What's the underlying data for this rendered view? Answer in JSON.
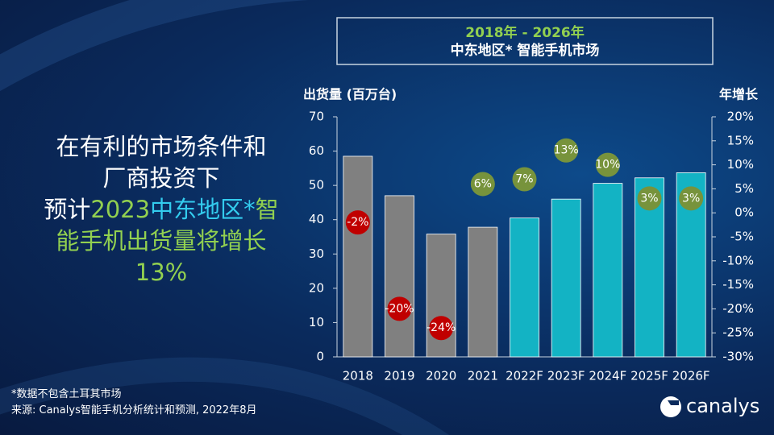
{
  "headline": [
    [
      {
        "text": "在有利的市场条件和",
        "color": "#ffffff"
      }
    ],
    [
      {
        "text": "厂商投资下",
        "color": "#ffffff"
      }
    ],
    [
      {
        "text": "预计",
        "color": "#ffffff"
      },
      {
        "text": "2023",
        "color": "#92d050"
      },
      {
        "text": "中东地区*",
        "color": "#33ccee"
      },
      {
        "text": "智",
        "color": "#92d050"
      }
    ],
    [
      {
        "text": "能手机出货量将增长",
        "color": "#92d050"
      }
    ],
    [
      {
        "text": "13%",
        "color": "#92d050"
      }
    ]
  ],
  "footnote": "*数据不包含土耳其市场",
  "source": "来源: Canalys智能手机分析统计和预测, 2022年8月",
  "logo": "canalys",
  "chart_data": {
    "type": "bar",
    "title": "2018年 - 2026年",
    "subtitle": "中东地区* 智能手机市场",
    "ylabel": "出货量 (百万台)",
    "y2label": "年增长",
    "categories": [
      "2018",
      "2019",
      "2020",
      "2021",
      "2022F",
      "2023F",
      "2024F",
      "2025F",
      "2026F"
    ],
    "ylim": [
      0,
      70
    ],
    "yticks": [
      0,
      10,
      20,
      30,
      40,
      50,
      60,
      70
    ],
    "y2lim": [
      -30,
      20
    ],
    "y2ticks": [
      {
        "value": 20,
        "label": "20%"
      },
      {
        "value": 15,
        "label": "15%"
      },
      {
        "value": 10,
        "label": "10%"
      },
      {
        "value": 5,
        "label": "5%"
      },
      {
        "value": 0,
        "label": "0%"
      },
      {
        "value": -5,
        "label": "-5%"
      },
      {
        "value": -10,
        "label": "-10%"
      },
      {
        "value": -15,
        "label": "-15%"
      },
      {
        "value": -20,
        "label": "-20%"
      },
      {
        "value": -25,
        "label": "-25%"
      },
      {
        "value": -30,
        "label": "-30%"
      }
    ],
    "series": [
      {
        "type": "bar",
        "colors": [
          "#808080",
          "#808080",
          "#808080",
          "#808080",
          "#13b3c4",
          "#13b3c4",
          "#13b3c4",
          "#13b3c4",
          "#13b3c4"
        ],
        "values": [
          58.5,
          47,
          35.8,
          37.8,
          40.5,
          46,
          50.6,
          52.2,
          53.7
        ]
      },
      {
        "type": "scatter",
        "axis": "y2",
        "colors": [
          "#c00000",
          "#c00000",
          "#c00000",
          "#77933c",
          "#77933c",
          "#77933c",
          "#77933c",
          "#77933c",
          "#77933c"
        ],
        "values": [
          -2,
          -20,
          -24,
          6,
          7,
          13,
          10,
          3,
          3
        ],
        "value_labels": [
          "-2%",
          "-20%",
          "-24%",
          "6%",
          "7%",
          "13%",
          "10%",
          "3%",
          "3%"
        ]
      }
    ]
  }
}
